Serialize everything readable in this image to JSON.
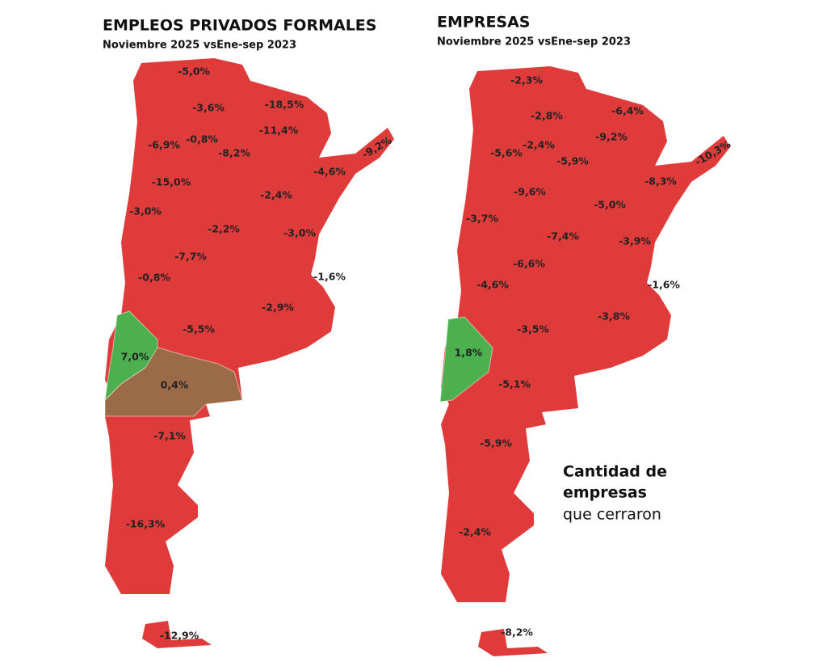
{
  "maps": [
    {
      "title": "EMPLEOS PRIVADOS FORMALES",
      "subtitle": "Noviembre 2025 vsEne-sep 2023",
      "color": "#e03b3b",
      "regions": [
        {
          "label": "-5,0%"
        },
        {
          "label": "-3,6%"
        },
        {
          "label": "-18,5%"
        },
        {
          "label": "-11,4%"
        },
        {
          "label": "-9,2%"
        },
        {
          "label": "-6,9%"
        },
        {
          "label": "-0,8%"
        },
        {
          "label": "-8,2%"
        },
        {
          "label": "-4,6%"
        },
        {
          "label": "-15,0%"
        },
        {
          "label": "-2,4%"
        },
        {
          "label": "-3,0%"
        },
        {
          "label": "-2,2%"
        },
        {
          "label": "-3,0%"
        },
        {
          "label": "-7,7%"
        },
        {
          "label": "-1,6%"
        },
        {
          "label": "-0,8%"
        },
        {
          "label": "-2,9%"
        },
        {
          "label": "-5,5%"
        },
        {
          "label": "7,0%",
          "color": "#4db04f"
        },
        {
          "label": "0,4%",
          "color": "#9b6a46"
        },
        {
          "label": "-7,1%"
        },
        {
          "label": "-16,3%"
        },
        {
          "label": "-12,9%"
        }
      ]
    },
    {
      "title": "EMPRESAS",
      "subtitle": "Noviembre 2025 vsEne-sep 2023",
      "color": "#e03b3b",
      "regions": [
        {
          "label": "-2,3%"
        },
        {
          "label": "-2,8%"
        },
        {
          "label": "-6,4%"
        },
        {
          "label": "-9,2%"
        },
        {
          "label": "-5,6%"
        },
        {
          "label": "-2,4%"
        },
        {
          "label": "-5,9%"
        },
        {
          "label": "-10,3%"
        },
        {
          "label": "-8,3%"
        },
        {
          "label": "-9,6%"
        },
        {
          "label": "-5,0%"
        },
        {
          "label": "-3,7%"
        },
        {
          "label": "-7,4%"
        },
        {
          "label": "-3,9%"
        },
        {
          "label": "-6,6%"
        },
        {
          "label": "-1,6%"
        },
        {
          "label": "-4,6%"
        },
        {
          "label": "-3,8%"
        },
        {
          "label": "-3,5%"
        },
        {
          "label": "1,8%",
          "color": "#4db04f"
        },
        {
          "label": "-5,1%"
        },
        {
          "label": "-5,9%"
        },
        {
          "label": "-2,4%"
        },
        {
          "label": "-8,2%"
        }
      ]
    }
  ],
  "note": {
    "line1": "Cantidad de",
    "line2": "empresas",
    "line3": "que cerraron"
  }
}
